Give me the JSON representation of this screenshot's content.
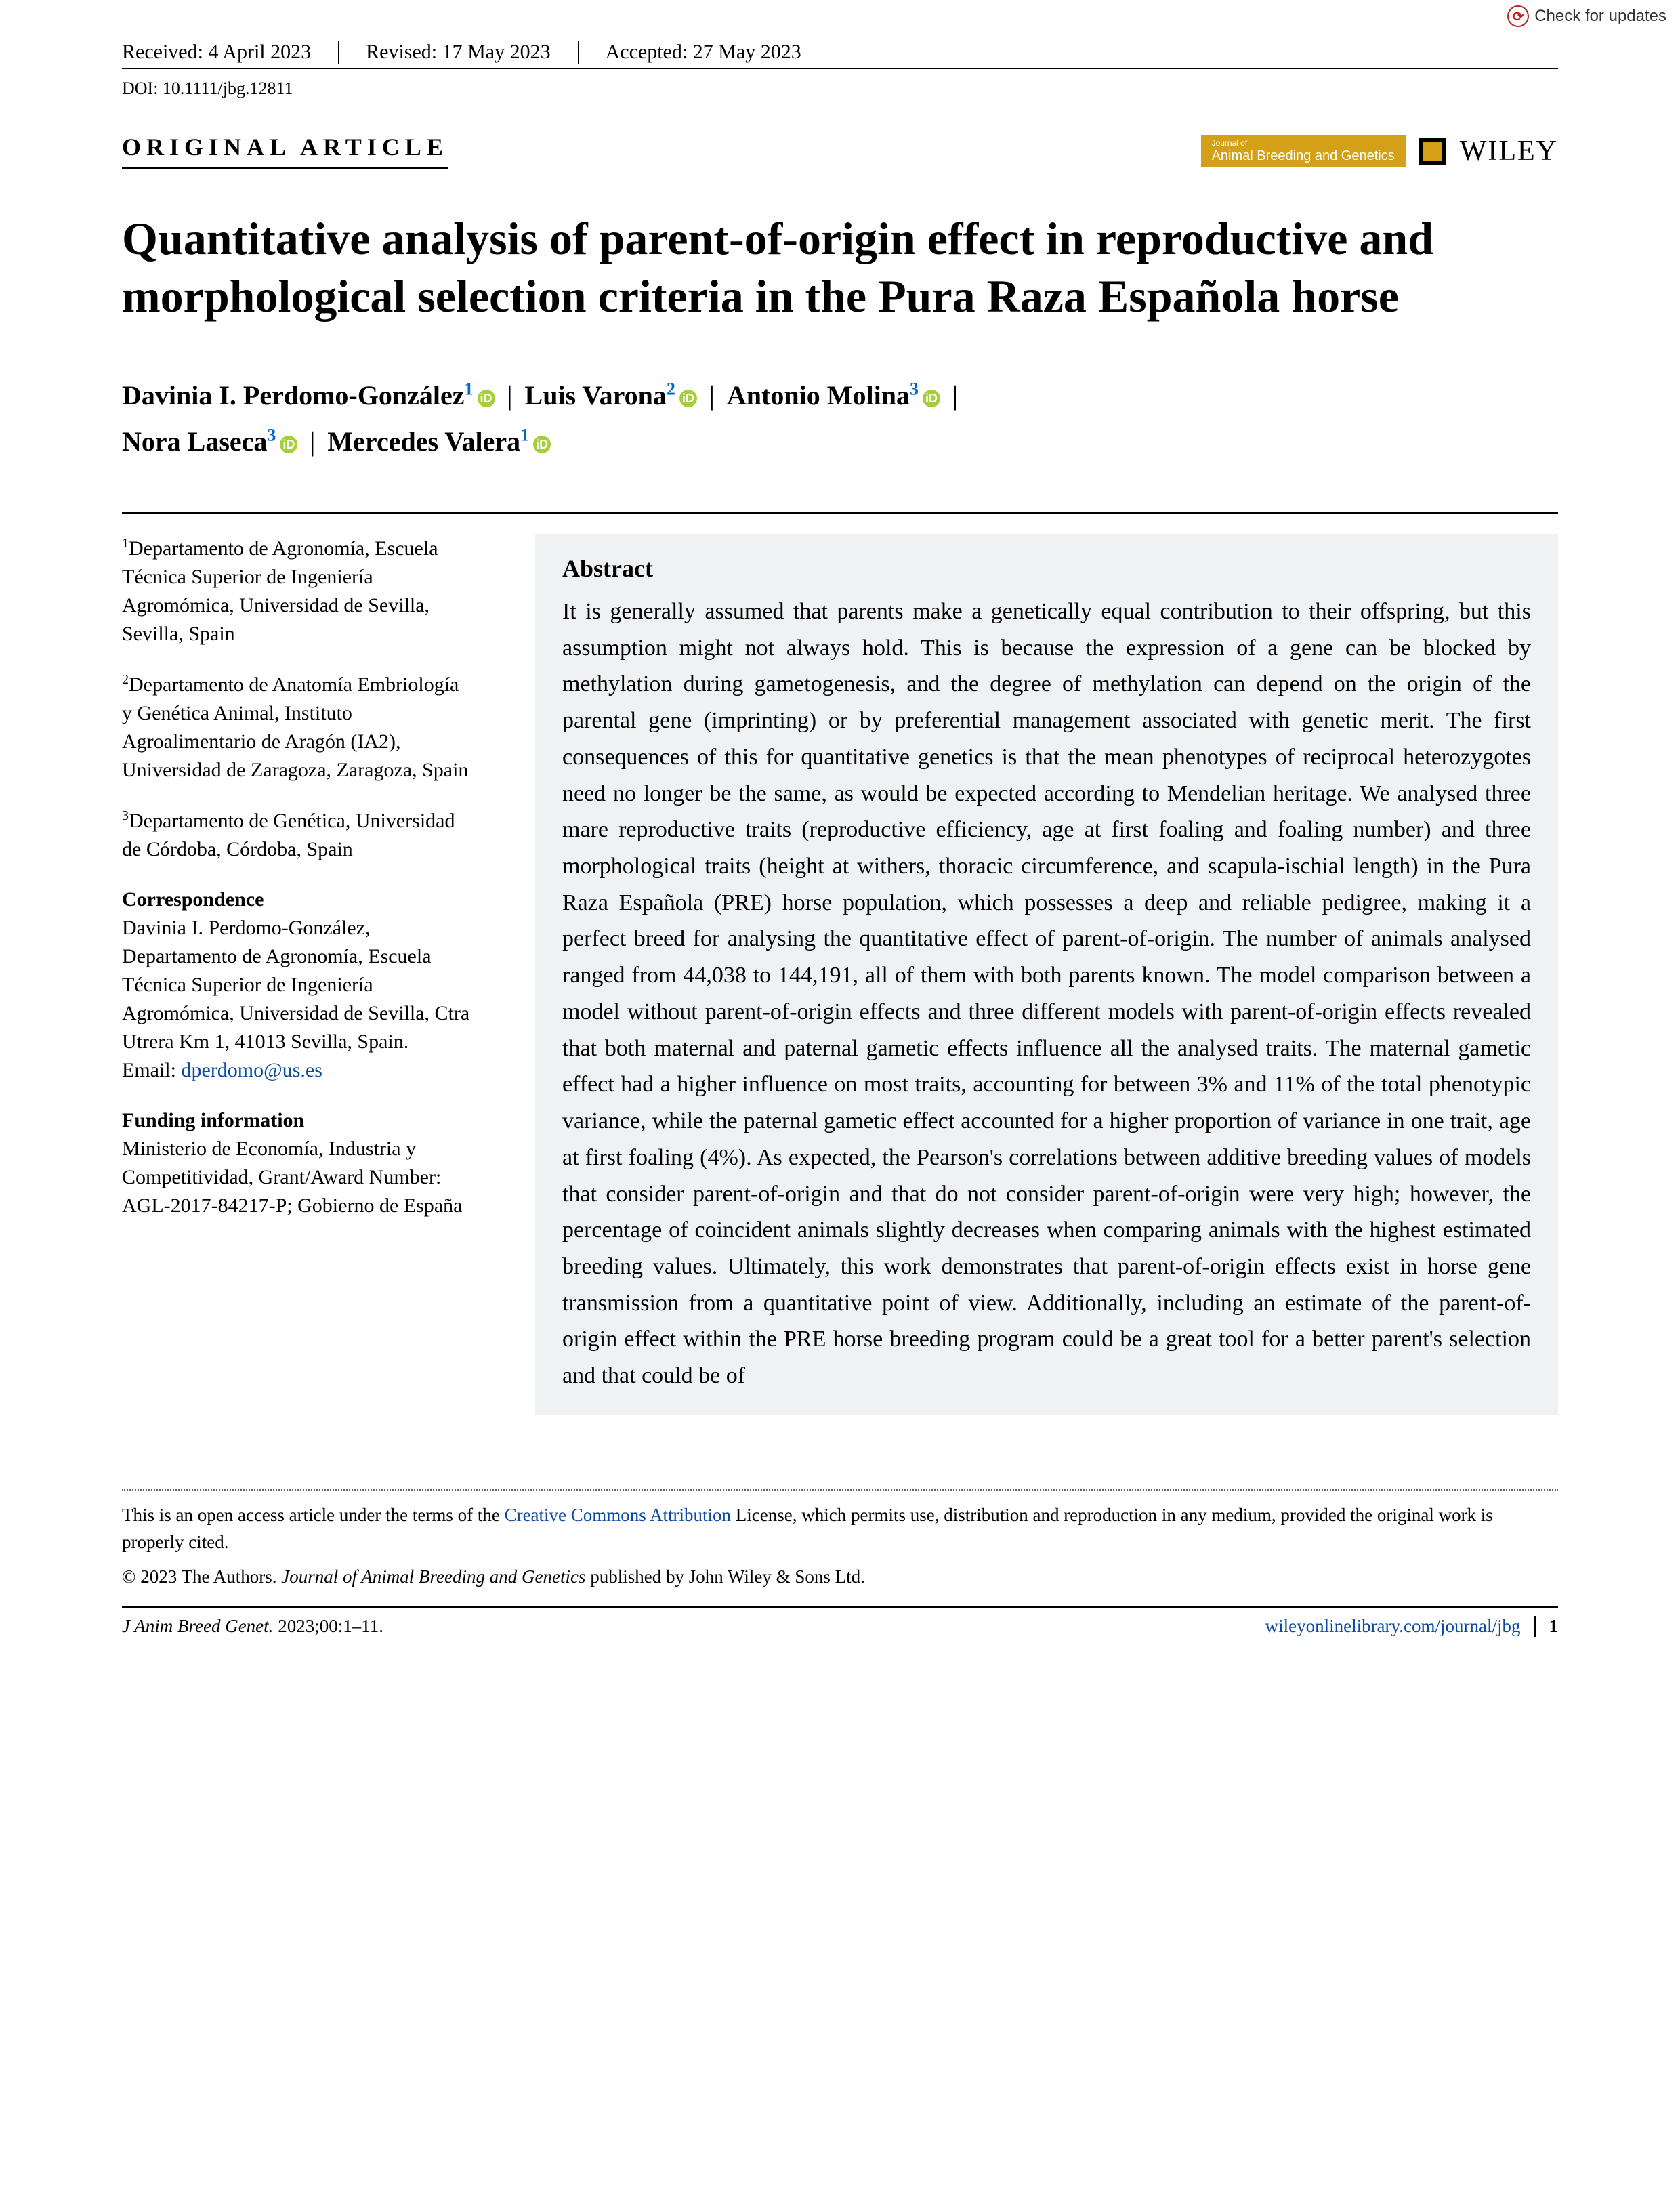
{
  "checkUpdates": "Check for updates",
  "metadata": {
    "received": "Received: 4 April 2023",
    "revised": "Revised: 17 May 2023",
    "accepted": "Accepted: 27 May 2023"
  },
  "doi": "DOI: 10.1111/jbg.12811",
  "articleType": "ORIGINAL ARTICLE",
  "journalBadge": {
    "small": "Journal of",
    "main": "Animal Breeding and Genetics"
  },
  "publisher": "WILEY",
  "title": "Quantitative analysis of parent-of-origin effect in reproductive and morphological selection criteria in the Pura Raza Española horse",
  "authors": [
    {
      "name": "Davinia I. Perdomo-González",
      "aff": "1"
    },
    {
      "name": "Luis Varona",
      "aff": "2"
    },
    {
      "name": "Antonio Molina",
      "aff": "3"
    },
    {
      "name": "Nora Laseca",
      "aff": "3"
    },
    {
      "name": "Mercedes Valera",
      "aff": "1"
    }
  ],
  "affiliations": [
    {
      "num": "1",
      "text": "Departamento de Agronomía, Escuela Técnica Superior de Ingeniería Agromómica, Universidad de Sevilla, Sevilla, Spain"
    },
    {
      "num": "2",
      "text": "Departamento de Anatomía Embriología y Genética Animal, Instituto Agroalimentario de Aragón (IA2), Universidad de Zaragoza, Zaragoza, Spain"
    },
    {
      "num": "3",
      "text": "Departamento de Genética, Universidad de Córdoba, Córdoba, Spain"
    }
  ],
  "correspondence": {
    "heading": "Correspondence",
    "text": "Davinia I. Perdomo-González, Departamento de Agronomía, Escuela Técnica Superior de Ingeniería Agromómica, Universidad de Sevilla, Ctra Utrera Km 1, 41013 Sevilla, Spain.",
    "emailLabel": "Email: ",
    "email": "dperdomo@us.es"
  },
  "funding": {
    "heading": "Funding information",
    "text": "Ministerio de Economía, Industria y Competitividad, Grant/Award Number: AGL-2017-84217-P; Gobierno de España"
  },
  "abstract": {
    "heading": "Abstract",
    "text": "It is generally assumed that parents make a genetically equal contribution to their offspring, but this assumption might not always hold. This is because the expression of a gene can be blocked by methylation during gametogenesis, and the degree of methylation can depend on the origin of the parental gene (imprinting) or by preferential management associated with genetic merit. The first consequences of this for quantitative genetics is that the mean phenotypes of reciprocal heterozygotes need no longer be the same, as would be expected according to Mendelian heritage. We analysed three mare reproductive traits (reproductive efficiency, age at first foaling and foaling number) and three morphological traits (height at withers, thoracic circumference, and scapula-ischial length) in the Pura Raza Española (PRE) horse population, which possesses a deep and reliable pedigree, making it a perfect breed for analysing the quantitative effect of parent-of-origin. The number of animals analysed ranged from 44,038 to 144,191, all of them with both parents known. The model comparison between a model without parent-of-origin effects and three different models with parent-of-origin effects revealed that both maternal and paternal gametic effects influence all the analysed traits. The maternal gametic effect had a higher influence on most traits, accounting for between 3% and 11% of the total phenotypic variance, while the paternal gametic effect accounted for a higher proportion of variance in one trait, age at first foaling (4%). As expected, the Pearson's correlations between additive breeding values of models that consider parent-of-origin and that do not consider parent-of-origin were very high; however, the percentage of coincident animals slightly decreases when comparing animals with the highest estimated breeding values. Ultimately, this work demonstrates that parent-of-origin effects exist in horse gene transmission from a quantitative point of view. Additionally, including an estimate of the parent-of-origin effect within the PRE horse breeding program could be a great tool for a better parent's selection and that could be of"
  },
  "footer": {
    "oa1": "This is an open access article under the terms of the ",
    "license": "Creative Commons Attribution",
    "oa2": " License, which permits use, distribution and reproduction in any medium, provided the original work is properly cited.",
    "copyright": "© 2023 The Authors. ",
    "copyrightItalic": "Journal of Animal Breeding and Genetics",
    "copyrightTail": " published by John Wiley & Sons Ltd.",
    "journalCite": "J Anim Breed Genet.",
    "citeTail": " 2023;00:1–11.",
    "url": "wileyonlinelibrary.com/journal/jbg",
    "pageNum": "1"
  }
}
